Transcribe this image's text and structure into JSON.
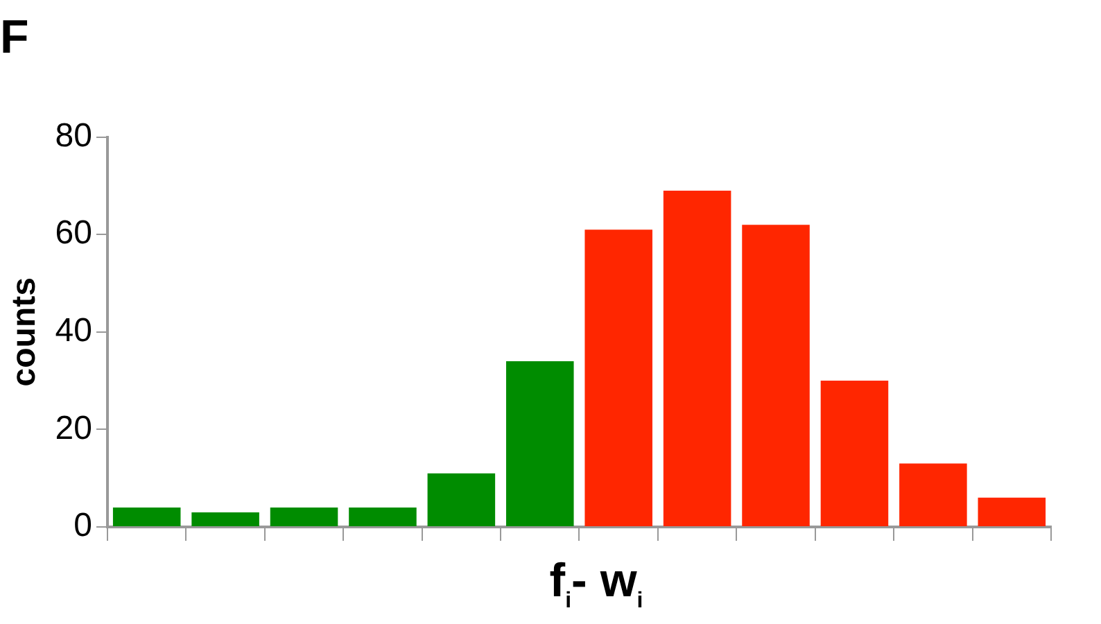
{
  "chart_data": {
    "type": "bar",
    "title": "F",
    "xlabel": "f$_{i}$- w$_{i}$",
    "ylabel": "counts",
    "categories": [
      null,
      null,
      null,
      null,
      null,
      null,
      null,
      null,
      null,
      null,
      null,
      null
    ],
    "values": [
      4,
      3,
      4,
      4,
      11,
      34,
      61,
      69,
      62,
      30,
      13,
      6
    ],
    "colors": [
      "#008c00",
      "#008c00",
      "#008c00",
      "#008c00",
      "#008c00",
      "#008c00",
      "#ff2600",
      "#ff2600",
      "#ff2600",
      "#ff2600",
      "#ff2600",
      "#ff2600"
    ],
    "ylim": [
      0,
      80
    ],
    "yticks": [
      0,
      20,
      40,
      60,
      80
    ],
    "grid": false,
    "legend": false
  }
}
